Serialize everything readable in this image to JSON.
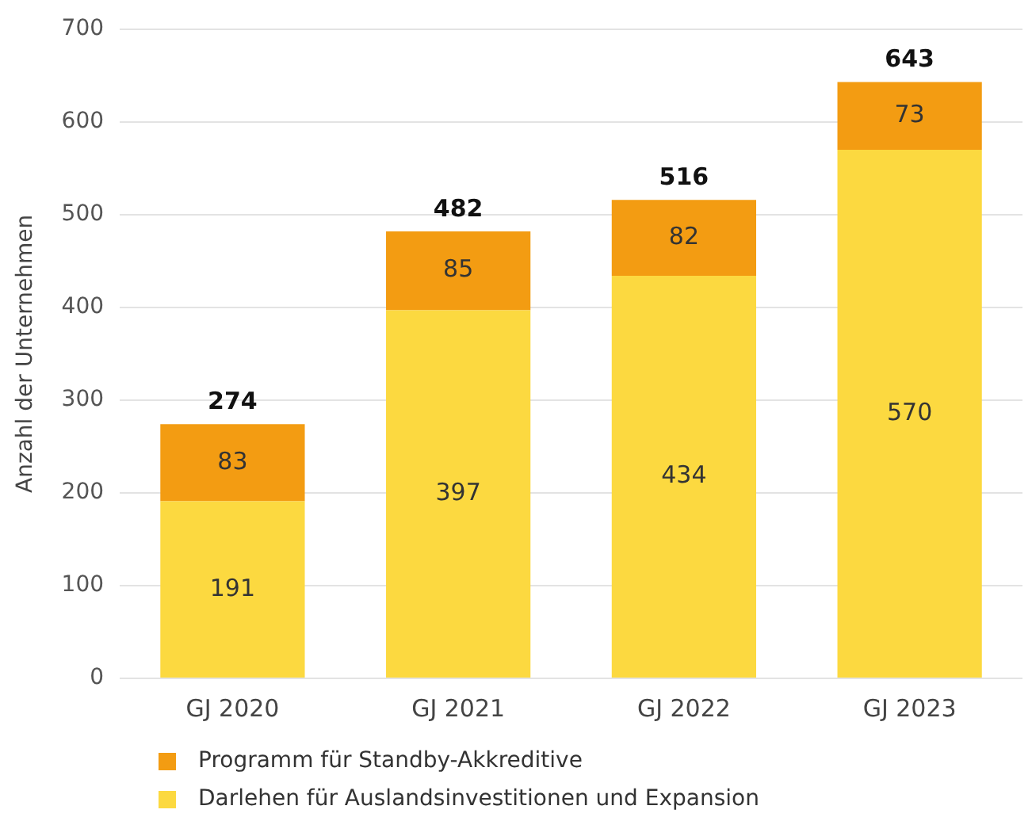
{
  "chart_data": {
    "type": "bar",
    "stacked": true,
    "ylabel": "Anzahl der Unternehmen",
    "categories": [
      "GJ 2020",
      "GJ 2021",
      "GJ 2022",
      "GJ 2023"
    ],
    "series": [
      {
        "name": "Darlehen für Auslandsinvestitionen und Expansion",
        "color": "#fcd940",
        "values": [
          191,
          397,
          434,
          570
        ]
      },
      {
        "name": "Programm für Standby-Akkreditive",
        "color": "#f39c12",
        "values": [
          83,
          85,
          82,
          73
        ]
      }
    ],
    "totals": [
      "274",
      "482",
      "516",
      "643"
    ],
    "data_labels": true,
    "ylim": [
      0,
      700
    ],
    "yticks": [
      0,
      100,
      200,
      300,
      400,
      500,
      600,
      700
    ],
    "grid": "y",
    "legend": "bottom left"
  }
}
